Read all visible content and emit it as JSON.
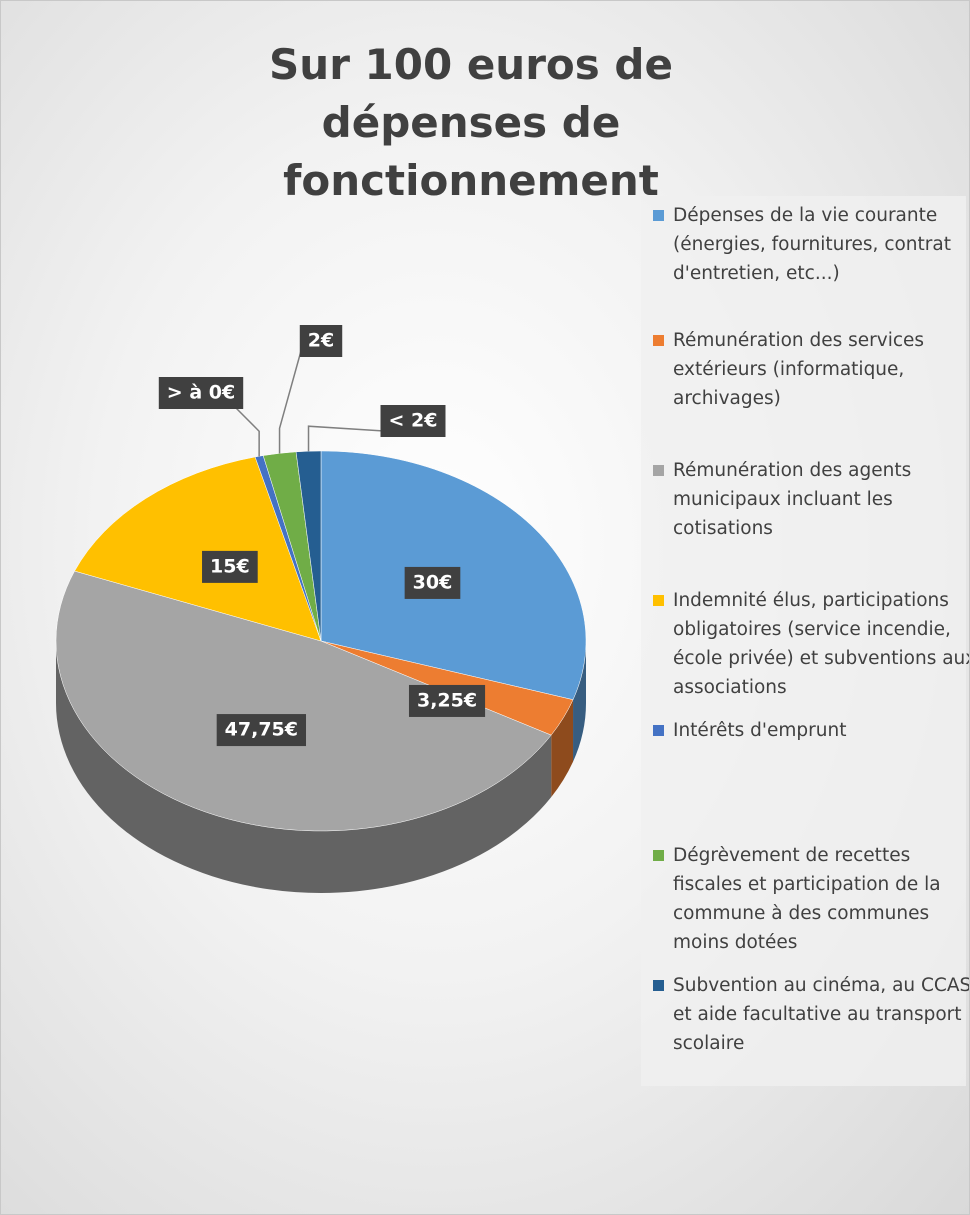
{
  "chart_data": {
    "type": "pie3d",
    "title": "Sur 100 euros de dépenses de fonctionnement",
    "categories": [
      "Dépenses de la vie courante (énergies, fournitures, contrat d'entretien, etc...)",
      "Rémunération des services extérieurs (informatique, archivages)",
      "Rémunération des agents municipaux incluant les cotisations",
      "Indemnité élus, participations obligatoires (service incendie, école privée) et subventions aux associations",
      "Intérêts d'emprunt",
      "Dégrèvement de recettes fiscales et participation de la commune à des communes moins dotées",
      "Subvention au cinéma, au CCAS et  aide facultative au transport scolaire"
    ],
    "values": [
      30,
      3.25,
      47.75,
      15,
      0.5,
      2,
      1.5
    ],
    "value_labels": [
      "30€",
      "3,25€",
      "47,75€",
      "15€",
      "> à 0€",
      "2€",
      "< 2€"
    ],
    "colors": [
      "#5B9BD5",
      "#ED7D31",
      "#A5A5A5",
      "#FFC000",
      "#4472C4",
      "#70AD47",
      "#255E91"
    ],
    "legend": "right"
  }
}
